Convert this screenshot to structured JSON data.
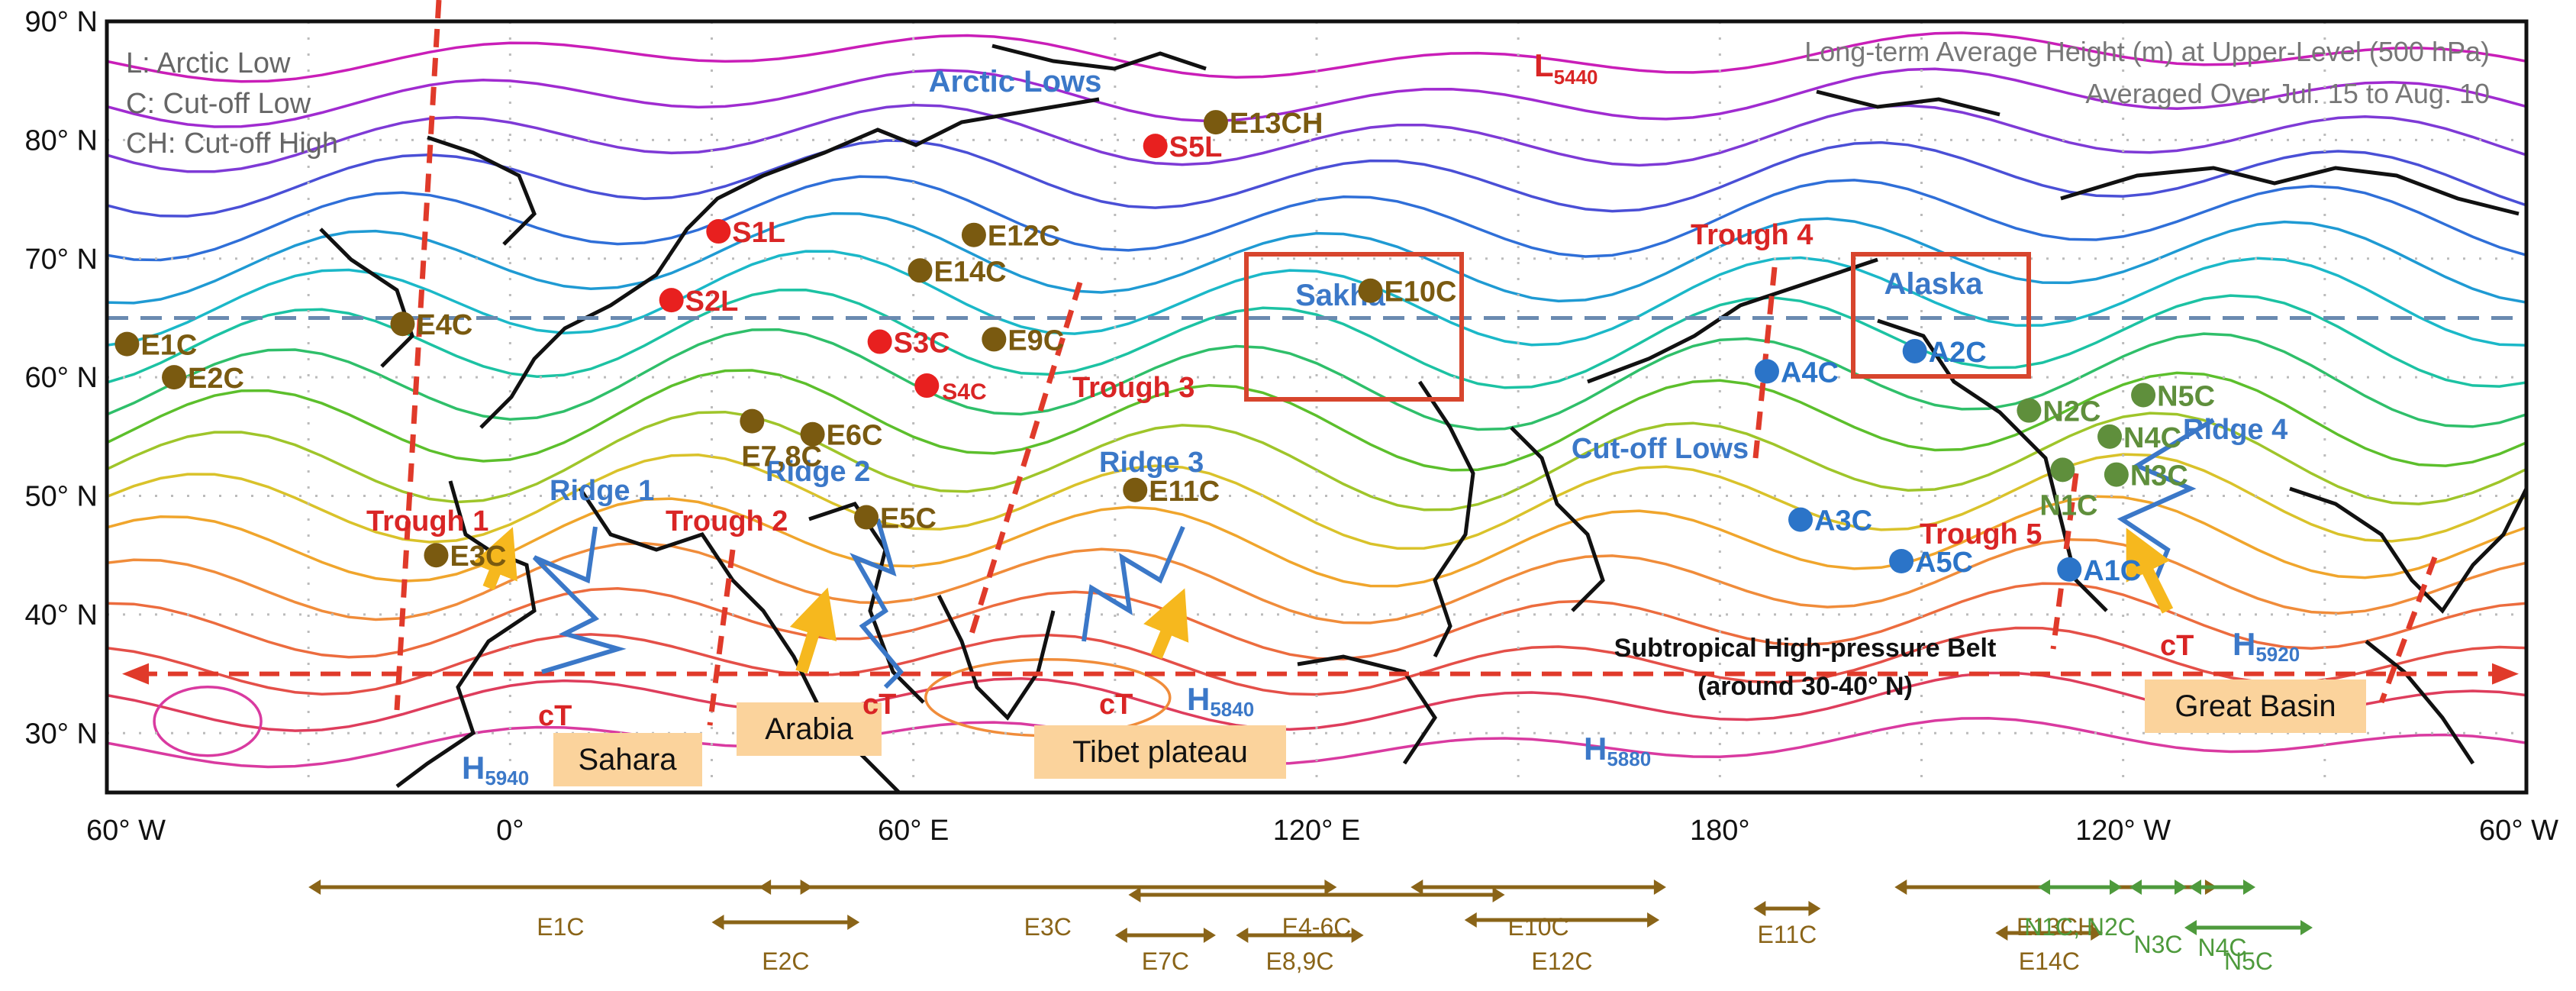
{
  "map": {
    "lat_ticks": [
      "90° N",
      "80° N",
      "70° N",
      "60° N",
      "50° N",
      "40° N",
      "30° N"
    ],
    "lon_ticks": [
      "60° W",
      "0°",
      "60° E",
      "120° E",
      "180°",
      "120° W",
      "60° W"
    ],
    "lat_range": [
      25,
      90
    ],
    "lon_axis_range": [
      -60,
      300
    ],
    "reference_latitude": 65,
    "subtropical_belt_latitude": 35,
    "contour_colors": [
      "#c91eb8",
      "#a02bd0",
      "#7e3ad6",
      "#4a4fd6",
      "#2f6fd8",
      "#1f9ad3",
      "#1bb8c8",
      "#1cc2a3",
      "#2fbf6a",
      "#5cbf2c",
      "#9fc52a",
      "#d9c22a",
      "#f0a52c",
      "#f08c3a",
      "#ec6c3e",
      "#e44f48",
      "#de3d5c",
      "#d93aa0"
    ]
  },
  "legend": {
    "l_line": "L: Arctic Low",
    "c_line": "C: Cut-off Low",
    "ch_line": "CH: Cut-off High",
    "title_line1": "Long-term Average Height (m) at  Upper-Level (500 hPa)",
    "title_line2": "Averaged Over Jul. 15 to Aug. 10",
    "arctic_lows": "Arctic Lows",
    "l5440_main": "L",
    "l5440_sub": "5440"
  },
  "regions": {
    "sakha": "Sakha",
    "alaska": "Alaska",
    "cutoff_lows": "Cut-off Lows",
    "subtropical_belt_line1": "Subtropical High-pressure Belt",
    "subtropical_belt_line2": "(around 30-40° N)",
    "sahara": "Sahara",
    "arabia": "Arabia",
    "tibet": "Tibet plateau",
    "great_basin": "Great Basin"
  },
  "troughs": [
    "Trough 1",
    "Trough 2",
    "Trough 3",
    "Trough 4",
    "Trough 5"
  ],
  "ridges": [
    "Ridge 1",
    "Ridge 2",
    "Ridge 3",
    "Ridge 4"
  ],
  "ct_label": "cT",
  "highs": [
    {
      "main": "H",
      "sub": "5940"
    },
    {
      "main": "H",
      "sub": "5840"
    },
    {
      "main": "H",
      "sub": "5880"
    },
    {
      "main": "H",
      "sub": "5920"
    }
  ],
  "events": [
    {
      "label": "S5L",
      "color": "#e8201f",
      "text_color": "#d92525"
    },
    {
      "label": "E13CH",
      "color": "#7a5a10",
      "text_color": "#7a5a10"
    },
    {
      "label": "S1L",
      "color": "#e8201f",
      "text_color": "#d92525"
    },
    {
      "label": "E12C",
      "color": "#7a5a10",
      "text_color": "#7a5a10"
    },
    {
      "label": "E14C",
      "color": "#7a5a10",
      "text_color": "#7a5a10"
    },
    {
      "label": "S2L",
      "color": "#e8201f",
      "text_color": "#d92525"
    },
    {
      "label": "E4C",
      "color": "#7a5a10",
      "text_color": "#7a5a10"
    },
    {
      "label": "E1C",
      "color": "#7a5a10",
      "text_color": "#7a5a10"
    },
    {
      "label": "S3C",
      "color": "#e8201f",
      "text_color": "#d92525"
    },
    {
      "label": "E9C",
      "color": "#7a5a10",
      "text_color": "#7a5a10"
    },
    {
      "label": "E2C",
      "color": "#7a5a10",
      "text_color": "#7a5a10"
    },
    {
      "label": "S4C",
      "color": "#e8201f",
      "text_color": "#d92525"
    },
    {
      "label": "E7,8C",
      "color": "#7a5a10",
      "text_color": "#7a5a10"
    },
    {
      "label": "E6C",
      "color": "#7a5a10",
      "text_color": "#7a5a10"
    },
    {
      "label": "E10C",
      "color": "#7a5a10",
      "text_color": "#7a5a10"
    },
    {
      "label": "E11C",
      "color": "#7a5a10",
      "text_color": "#7a5a10"
    },
    {
      "label": "E5C",
      "color": "#7a5a10",
      "text_color": "#7a5a10"
    },
    {
      "label": "E3C",
      "color": "#7a5a10",
      "text_color": "#7a5a10"
    },
    {
      "label": "A4C",
      "color": "#2b74c8",
      "text_color": "#2b74c8"
    },
    {
      "label": "A2C",
      "color": "#2b74c8",
      "text_color": "#2b74c8"
    },
    {
      "label": "A3C",
      "color": "#2b74c8",
      "text_color": "#2b74c8"
    },
    {
      "label": "A5C",
      "color": "#2b74c8",
      "text_color": "#2b74c8"
    },
    {
      "label": "A1C",
      "color": "#2b74c8",
      "text_color": "#2b74c8"
    },
    {
      "label": "N2C",
      "color": "#5f8f3c",
      "text_color": "#5f8f3c"
    },
    {
      "label": "N5C",
      "color": "#5f8f3c",
      "text_color": "#5f8f3c"
    },
    {
      "label": "N4C",
      "color": "#5f8f3c",
      "text_color": "#5f8f3c"
    },
    {
      "label": "N3C",
      "color": "#5f8f3c",
      "text_color": "#5f8f3c"
    },
    {
      "label": "N1C",
      "color": "#5f8f3c",
      "text_color": "#5f8f3c"
    }
  ],
  "ranges": [
    {
      "label": "E1C",
      "color": "#8a6418"
    },
    {
      "label": "E2C",
      "color": "#8a6418"
    },
    {
      "label": "E3C",
      "color": "#8a6418"
    },
    {
      "label": "E4-6C",
      "color": "#8a6418"
    },
    {
      "label": "E7C",
      "color": "#8a6418"
    },
    {
      "label": "E8,9C",
      "color": "#8a6418"
    },
    {
      "label": "E10C",
      "color": "#8a6418"
    },
    {
      "label": "E11C",
      "color": "#8a6418"
    },
    {
      "label": "E12C",
      "color": "#8a6418"
    },
    {
      "label": "E13CH",
      "color": "#8a6418"
    },
    {
      "label": "E14C",
      "color": "#8a6418"
    },
    {
      "label": "N1C, N2C",
      "color": "#4e9a3c"
    },
    {
      "label": "N3C",
      "color": "#4e9a3c"
    },
    {
      "label": "N4C",
      "color": "#4e9a3c"
    },
    {
      "label": "N5C",
      "color": "#4e9a3c"
    }
  ]
}
